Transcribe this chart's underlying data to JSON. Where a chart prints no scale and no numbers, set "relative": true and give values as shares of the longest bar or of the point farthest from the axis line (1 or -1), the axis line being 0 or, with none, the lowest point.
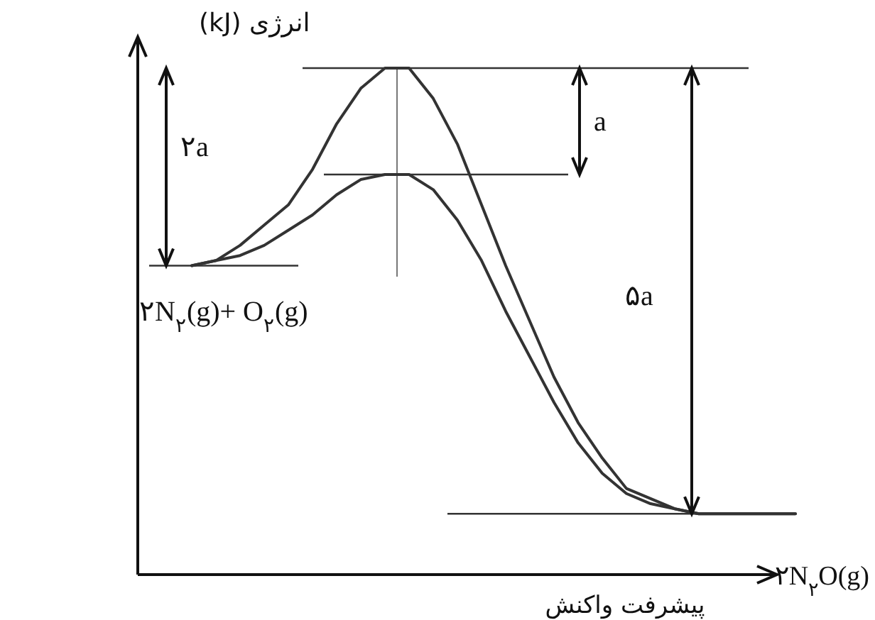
{
  "chart_data": {
    "type": "line",
    "relative": true,
    "xlabel": "پیشرفت واکنش",
    "ylabel": "انرژی (kJ)",
    "categories": [
      null,
      null,
      null,
      null,
      null,
      null,
      null,
      null,
      null,
      null,
      null,
      null,
      null,
      null,
      null,
      null,
      null,
      null,
      null,
      null,
      null,
      null,
      null,
      null,
      null,
      null
    ],
    "series": [
      {
        "color": "#333333",
        "values": [
          0.61,
          0.62,
          0.65,
          0.69,
          0.73,
          0.8,
          0.89,
          0.96,
          1.0,
          1.0,
          0.94,
          0.85,
          0.73,
          0.61,
          0.5,
          0.39,
          0.3,
          0.23,
          0.17,
          0.15,
          0.13,
          0.12,
          0.12,
          0.12,
          0.12,
          0.12
        ]
      },
      {
        "color": "#333333",
        "values": [
          0.61,
          0.62,
          0.63,
          0.65,
          0.68,
          0.71,
          0.75,
          0.78,
          0.79,
          0.79,
          0.76,
          0.7,
          0.62,
          0.52,
          0.43,
          0.34,
          0.26,
          0.2,
          0.16,
          0.14,
          0.13,
          0.12,
          0.12,
          0.12,
          0.12,
          0.12
        ]
      }
    ],
    "ref_lines": [
      {
        "axis": "y",
        "value": 1.0,
        "color": "#333333"
      },
      {
        "axis": "y",
        "value": 0.79,
        "color": "#333333"
      },
      {
        "axis": "y",
        "value": 0.61,
        "color": "#333333"
      },
      {
        "axis": "y",
        "value": 0.12,
        "color": "#333333"
      }
    ],
    "annotations": [
      "۲a",
      "a",
      "۵a",
      "۲N$_{۲}$(g)+ O$_{۲}$(g)",
      "۲N$_{۲}$O(g)"
    ],
    "marker": "none",
    "line_style": "solid"
  }
}
